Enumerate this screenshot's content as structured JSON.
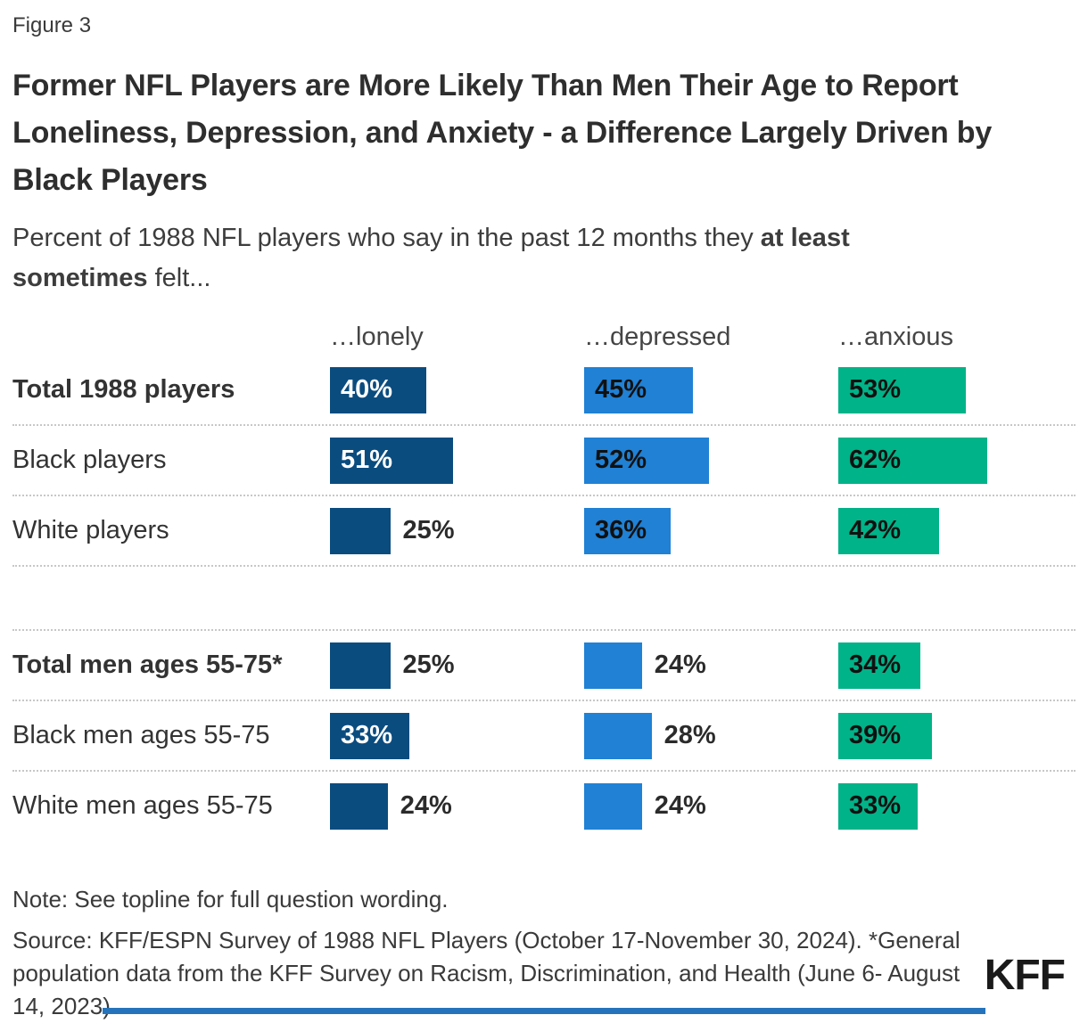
{
  "figure_label": "Figure 3",
  "title": "Former NFL Players are More Likely Than Men Their Age to Report Loneliness, Depression, and Anxiety - a Difference Largely Driven by Black Players",
  "subtitle": {
    "prefix": "Percent of 1988 NFL players who say in the past 12 months they ",
    "bold": "at least sometimes",
    "suffix": " felt..."
  },
  "footer": {
    "note": "Note: See topline for full question wording.",
    "source": "Source: KFF/ESPN Survey of 1988 NFL Players (October 17-November 30, 2024). *General population data from the KFF Survey on Racism, Discrimination, and Health (June 6- August 14, 2023)",
    "logo": "KFF"
  },
  "colors": {
    "lonely_bar": "#0B4C7F",
    "depressed_bar": "#2081D5",
    "anxious_bar": "#00B388",
    "text_dark": "#333333",
    "separator": "#C7C7C7",
    "bottom_rule": "#2574BB"
  },
  "chart_data": {
    "type": "bar",
    "orientation": "horizontal",
    "unit": "%",
    "xlim": [
      0,
      100
    ],
    "grid": false,
    "legend": "none",
    "column_headers": [
      "…lonely",
      "…depressed",
      "…anxious"
    ],
    "series": [
      {
        "name": "lonely",
        "color": "#0B4C7F",
        "inside_label_color": "#FFFFFF"
      },
      {
        "name": "depressed",
        "color": "#2081D5",
        "inside_label_color": "#111111"
      },
      {
        "name": "anxious",
        "color": "#00B388",
        "inside_label_color": "#111111"
      }
    ],
    "inside_label_min_value": 33,
    "groups": [
      {
        "rows": [
          {
            "label": "Total 1988 players",
            "bold": true,
            "values": [
              40,
              45,
              53
            ]
          },
          {
            "label": "Black players",
            "bold": false,
            "values": [
              51,
              52,
              62
            ]
          },
          {
            "label": "White players",
            "bold": false,
            "values": [
              25,
              36,
              42
            ]
          }
        ]
      },
      {
        "rows": [
          {
            "label": "Total men ages 55-75*",
            "bold": true,
            "values": [
              25,
              24,
              34
            ]
          },
          {
            "label": "Black men ages 55-75",
            "bold": false,
            "values": [
              33,
              28,
              39
            ]
          },
          {
            "label": "White men ages 55-75",
            "bold": false,
            "values": [
              24,
              24,
              33
            ]
          }
        ]
      }
    ]
  }
}
